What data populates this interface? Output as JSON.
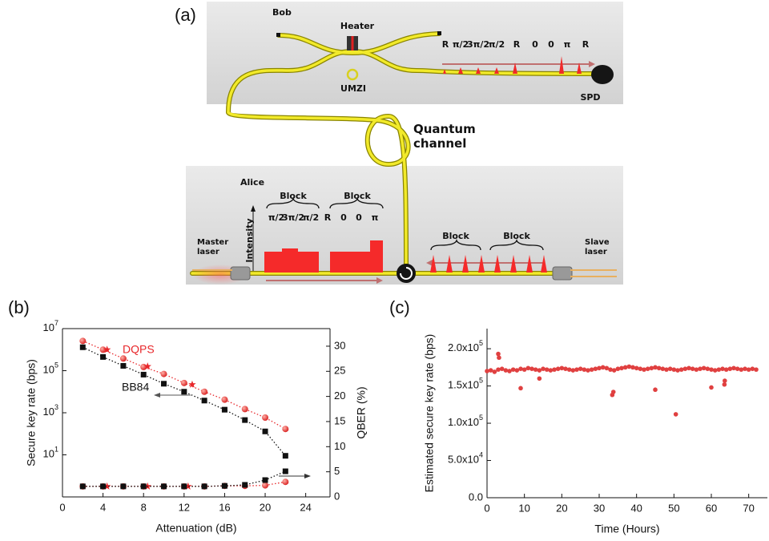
{
  "panel_labels": [
    "(a)",
    "(b)",
    "(c)"
  ],
  "diagram": {
    "bob": {
      "title": "Bob",
      "heater": "Heater",
      "umzi": "UMZI",
      "spd": "SPD",
      "phases": [
        "R",
        "π/2",
        "3π/2",
        "π/2",
        "R",
        "0",
        "0",
        "π",
        "R"
      ]
    },
    "channel": "Quantum channel",
    "alice": {
      "title": "Alice",
      "blocks_left": [
        "Block",
        "Block"
      ],
      "phases": [
        "π/2",
        "3π/2",
        "π/2",
        "R",
        "0",
        "0",
        "π"
      ],
      "intensity": "Intensity",
      "master": "Master laser",
      "slave": "Slave laser",
      "blocks_right": [
        "Block",
        "Block"
      ]
    }
  },
  "chart_data": [
    {
      "type": "scatter",
      "log_y": true,
      "box": true,
      "xlabel": "Attenuation (dB)",
      "ylabel": "Secure key rate (bps)",
      "y2label": "QBER (%)",
      "xlim": [
        0,
        26.4
      ],
      "xticks": [
        0,
        4,
        8,
        12,
        16,
        20,
        24
      ],
      "ylim": [
        0.1,
        10000000
      ],
      "yticks": [
        {
          "value": 10,
          "label": "10^1"
        },
        {
          "value": 1000,
          "label": "10^3"
        },
        {
          "value": 100000,
          "label": "10^5"
        },
        {
          "value": 10000000,
          "label": "10^7"
        }
      ],
      "y2lim": [
        0,
        33.5
      ],
      "y2ticks": [
        0,
        5,
        10,
        15,
        20,
        25,
        30
      ],
      "series": [
        {
          "name": "DQPS",
          "color": "#e8262a",
          "marker": "circle",
          "line_style": "dotted",
          "x": [
            2,
            4,
            6,
            8,
            10,
            12,
            14,
            16,
            18,
            20,
            22
          ],
          "values": [
            2600000,
            1000000,
            380000,
            150000,
            70000,
            26000,
            10000,
            4200,
            1500,
            590,
            170
          ]
        },
        {
          "color": "#e8262a",
          "marker": "star",
          "x": [
            4.4,
            8.4,
            12.8
          ],
          "values": [
            1000000,
            160000,
            22000
          ]
        },
        {
          "name": "BB84",
          "color": "#111111",
          "marker": "square",
          "line_style": "dotted",
          "x": [
            2,
            4,
            6,
            8,
            10,
            12,
            14,
            16,
            18,
            20,
            22
          ],
          "values": [
            1300000,
            450000,
            170000,
            65000,
            24000,
            10000,
            3800,
            1400,
            450,
            130,
            9
          ]
        },
        {
          "color": "#e8262a",
          "marker": "circle",
          "line_style": "dotted",
          "axis": "y2",
          "x": [
            2,
            4,
            6,
            8,
            10,
            12,
            14,
            16,
            18,
            20,
            22
          ],
          "values": [
            2.1,
            2.1,
            2.1,
            2.1,
            2.1,
            2.1,
            2.1,
            2.2,
            2.2,
            2.3,
            3.0
          ]
        },
        {
          "color": "#e8262a",
          "marker": "star",
          "axis": "y2",
          "x": [
            4.4,
            8.4,
            12.4
          ],
          "values": [
            2.1,
            2.1,
            2.1
          ]
        },
        {
          "color": "#111111",
          "marker": "square",
          "line_style": "dotted",
          "axis": "y2",
          "x": [
            2,
            4,
            6,
            8,
            10,
            12,
            14,
            16,
            18,
            20,
            22
          ],
          "values": [
            2.1,
            2.1,
            2.1,
            2.1,
            2.1,
            2.1,
            2.1,
            2.2,
            2.4,
            3.35,
            5.1
          ]
        }
      ]
    },
    {
      "type": "scatter",
      "box": false,
      "xlabel": "Time (Hours)",
      "ylabel": "Estimated secure key rate (bps)",
      "xlim": [
        0,
        75
      ],
      "xticks": [
        0,
        10,
        20,
        30,
        40,
        50,
        60,
        70
      ],
      "ylim": [
        0,
        227000
      ],
      "yticks": [
        {
          "value": 0,
          "label": "0.0"
        },
        {
          "value": 50000,
          "label": "5.0x10^4"
        },
        {
          "value": 100000,
          "label": "1.0x10^5"
        },
        {
          "value": 150000,
          "label": "1.5x10^5"
        },
        {
          "value": 200000,
          "label": "2.0x10^5"
        }
      ],
      "series": [
        {
          "color": "#e04040",
          "marker": "dot",
          "x": [
            0,
            1,
            2,
            3,
            4,
            5,
            6,
            7,
            8,
            9,
            10,
            11,
            12,
            13,
            14,
            15,
            16,
            17,
            18,
            19,
            20,
            21,
            22,
            23,
            24,
            25,
            26,
            27,
            28,
            29,
            30,
            31,
            32,
            33,
            34,
            35,
            36,
            37,
            38,
            39,
            40,
            41,
            42,
            43,
            44,
            45,
            46,
            47,
            48,
            49,
            50,
            51,
            52,
            53,
            54,
            55,
            56,
            57,
            58,
            59,
            60,
            61,
            62,
            63,
            64,
            65,
            66,
            67,
            68,
            69,
            70,
            71,
            72,
            3,
            3.2,
            9,
            14,
            33.5,
            33.8,
            45,
            50.5,
            60,
            63.5,
            63.6
          ],
          "values": [
            170000,
            171000,
            169000,
            172000,
            173000,
            171000,
            170000,
            172000,
            171000,
            173000,
            172000,
            174000,
            173000,
            172000,
            171000,
            173000,
            172000,
            171000,
            172000,
            173000,
            174000,
            173000,
            172000,
            171000,
            172000,
            173000,
            172000,
            171000,
            172000,
            173000,
            174000,
            175000,
            174000,
            172000,
            171000,
            173000,
            174000,
            175000,
            176000,
            175000,
            174000,
            173000,
            172000,
            173000,
            174000,
            175000,
            174000,
            173000,
            172000,
            173000,
            172000,
            171000,
            172000,
            173000,
            174000,
            173000,
            172000,
            173000,
            174000,
            173000,
            172000,
            171000,
            172000,
            173000,
            172000,
            173000,
            174000,
            173000,
            172000,
            173000,
            172000,
            173000,
            172000,
            193000,
            188000,
            147000,
            160000,
            138000,
            142000,
            145000,
            112000,
            148000,
            152000,
            157000
          ]
        }
      ]
    }
  ]
}
